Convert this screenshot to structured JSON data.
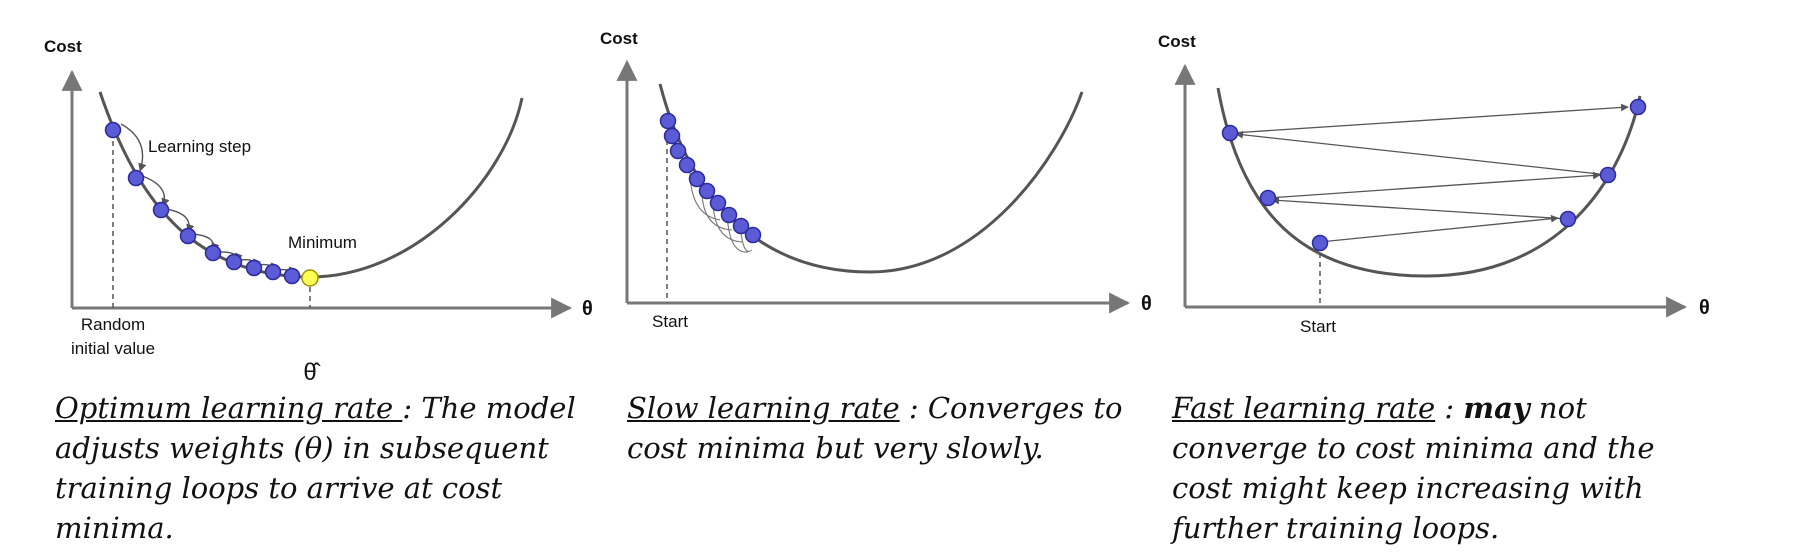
{
  "colors": {
    "axis": "#777777",
    "curve": "#555555",
    "point": "#5b5bd6",
    "point_stroke": "#2b2b9e",
    "minimum_point": "#ffff55",
    "minimum_stroke": "#a09000",
    "arrow": "#555555"
  },
  "panels": [
    {
      "id": "optimum",
      "y_axis_label": "Cost",
      "x_axis_label": "θ",
      "annotations": {
        "learning_step": "Learning step",
        "minimum": "Minimum",
        "start_line1": "Random",
        "start_line2": "initial value",
        "theta_hat": "θ̂"
      },
      "caption": {
        "title": "Optimum learning rate ",
        "separator": ": ",
        "text": "The model adjusts weights (θ) in subsequent training loops to arrive at cost minima."
      }
    },
    {
      "id": "slow",
      "y_axis_label": "Cost",
      "x_axis_label": "θ",
      "annotations": {
        "start": "Start"
      },
      "caption": {
        "title": "Slow learning rate",
        "separator": " : ",
        "text": "Converges to cost minima but very slowly."
      }
    },
    {
      "id": "fast",
      "y_axis_label": "Cost",
      "x_axis_label": "θ",
      "annotations": {
        "start": "Start"
      },
      "caption": {
        "title": "Fast learning rate",
        "separator": " : ",
        "emphasis": "may",
        "text": " not converge to cost minima and the cost might keep increasing with further training loops."
      }
    }
  ]
}
